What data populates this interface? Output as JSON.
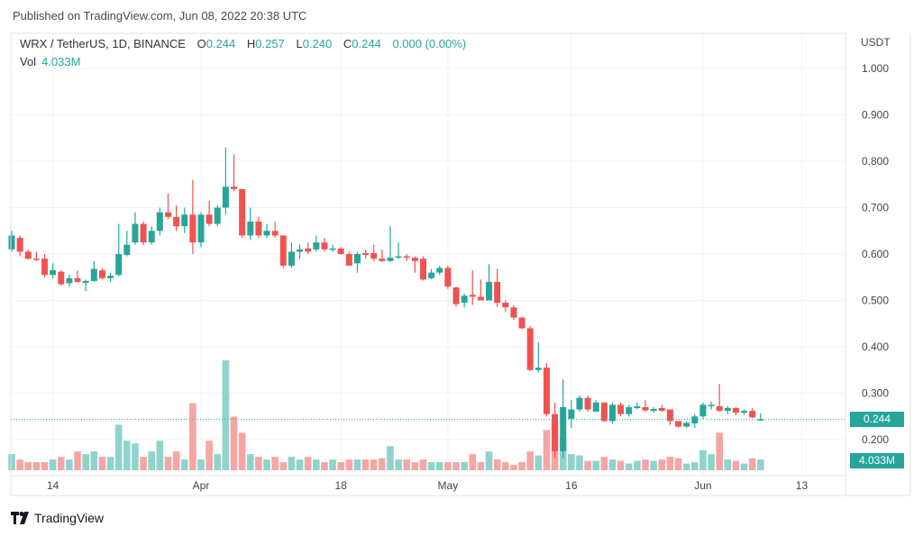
{
  "header": {
    "published": "Published on TradingView.com, Jun 08, 2022 20:38 UTC"
  },
  "legend": {
    "symbol": "WRX / TetherUS, 1D, BINANCE",
    "o_label": "O",
    "o": "0.244",
    "h_label": "H",
    "h": "0.257",
    "l_label": "L",
    "l": "0.240",
    "c_label": "C",
    "c": "0.244",
    "change": "0.000 (0.00%)",
    "vol_label": "Vol",
    "vol": "4.033M"
  },
  "price_axis": {
    "unit": "USDT",
    "ticks": [
      "1.000",
      "0.900",
      "0.800",
      "0.700",
      "0.600",
      "0.500",
      "0.400",
      "0.300",
      "0.200"
    ]
  },
  "badges": {
    "last_price": "0.244",
    "last_volume": "4.033M"
  },
  "footer": {
    "logo_text": "TradingView"
  },
  "colors": {
    "up": "#26a69a",
    "down": "#ef5350",
    "up_volume": "#8fd3cc",
    "down_volume": "#f5a6a4",
    "grid": "#f0f3fa"
  },
  "chart_data": {
    "type": "candlestick",
    "symbol": "WRX / TetherUS",
    "interval": "1D",
    "first_date": "2022-03-09",
    "ylim": [
      0.2,
      1.0
    ],
    "y_ticks": [
      0.2,
      0.3,
      0.4,
      0.5,
      0.6,
      0.7,
      0.8,
      0.9,
      1.0
    ],
    "grid": true,
    "last_price": 0.244,
    "x_ticks": [
      {
        "date": "2022-03-14",
        "label": "14"
      },
      {
        "date": "2022-04-01",
        "label": "Apr"
      },
      {
        "date": "2022-04-18",
        "label": "18"
      },
      {
        "date": "2022-05-01",
        "label": "May"
      },
      {
        "date": "2022-05-16",
        "label": "16"
      },
      {
        "date": "2022-06-01",
        "label": "Jun"
      },
      {
        "date": "2022-06-13",
        "label": "13"
      }
    ],
    "ohlcv_fields": [
      "open",
      "high",
      "low",
      "close",
      "volume_millions"
    ],
    "ohlcv": [
      [
        0.61,
        0.65,
        0.605,
        0.64,
        6
      ],
      [
        0.635,
        0.64,
        0.595,
        0.605,
        4
      ],
      [
        0.605,
        0.61,
        0.588,
        0.59,
        3
      ],
      [
        0.59,
        0.605,
        0.585,
        0.588,
        3
      ],
      [
        0.59,
        0.6,
        0.55,
        0.555,
        3
      ],
      [
        0.555,
        0.58,
        0.548,
        0.565,
        4
      ],
      [
        0.562,
        0.565,
        0.532,
        0.535,
        5
      ],
      [
        0.537,
        0.555,
        0.53,
        0.548,
        4
      ],
      [
        0.548,
        0.565,
        0.538,
        0.54,
        7
      ],
      [
        0.538,
        0.545,
        0.52,
        0.542,
        6
      ],
      [
        0.542,
        0.585,
        0.54,
        0.568,
        7
      ],
      [
        0.565,
        0.57,
        0.545,
        0.548,
        5
      ],
      [
        0.548,
        0.56,
        0.54,
        0.553,
        5
      ],
      [
        0.555,
        0.665,
        0.552,
        0.6,
        17
      ],
      [
        0.598,
        0.65,
        0.595,
        0.62,
        11
      ],
      [
        0.625,
        0.69,
        0.62,
        0.665,
        10
      ],
      [
        0.665,
        0.67,
        0.62,
        0.625,
        5
      ],
      [
        0.625,
        0.66,
        0.62,
        0.65,
        7
      ],
      [
        0.65,
        0.7,
        0.64,
        0.69,
        11
      ],
      [
        0.69,
        0.73,
        0.675,
        0.68,
        5
      ],
      [
        0.68,
        0.705,
        0.65,
        0.66,
        7
      ],
      [
        0.66,
        0.7,
        0.645,
        0.685,
        4
      ],
      [
        0.685,
        0.76,
        0.6,
        0.625,
        25
      ],
      [
        0.625,
        0.69,
        0.615,
        0.685,
        4
      ],
      [
        0.685,
        0.715,
        0.66,
        0.665,
        11
      ],
      [
        0.665,
        0.705,
        0.66,
        0.7,
        6
      ],
      [
        0.7,
        0.83,
        0.685,
        0.745,
        41
      ],
      [
        0.745,
        0.815,
        0.735,
        0.74,
        20
      ],
      [
        0.74,
        0.74,
        0.635,
        0.64,
        14
      ],
      [
        0.64,
        0.7,
        0.63,
        0.67,
        6
      ],
      [
        0.67,
        0.68,
        0.635,
        0.64,
        5
      ],
      [
        0.64,
        0.665,
        0.635,
        0.65,
        4
      ],
      [
        0.65,
        0.67,
        0.635,
        0.64,
        5
      ],
      [
        0.64,
        0.64,
        0.57,
        0.575,
        3
      ],
      [
        0.575,
        0.625,
        0.57,
        0.605,
        5
      ],
      [
        0.605,
        0.62,
        0.59,
        0.61,
        4
      ],
      [
        0.612,
        0.625,
        0.6,
        0.605,
        5
      ],
      [
        0.61,
        0.64,
        0.605,
        0.625,
        4
      ],
      [
        0.625,
        0.635,
        0.605,
        0.61,
        3
      ],
      [
        0.61,
        0.62,
        0.605,
        0.612,
        4
      ],
      [
        0.612,
        0.615,
        0.598,
        0.6,
        3
      ],
      [
        0.6,
        0.605,
        0.575,
        0.575,
        4
      ],
      [
        0.58,
        0.605,
        0.56,
        0.6,
        4
      ],
      [
        0.602,
        0.61,
        0.59,
        0.598,
        4
      ],
      [
        0.602,
        0.62,
        0.585,
        0.59,
        4
      ],
      [
        0.59,
        0.61,
        0.583,
        0.585,
        4.5
      ],
      [
        0.585,
        0.66,
        0.583,
        0.592,
        9
      ],
      [
        0.593,
        0.625,
        0.59,
        0.595,
        4
      ],
      [
        0.595,
        0.6,
        0.585,
        0.592,
        4
      ],
      [
        0.592,
        0.595,
        0.56,
        0.585,
        3
      ],
      [
        0.59,
        0.595,
        0.543,
        0.545,
        4
      ],
      [
        0.548,
        0.568,
        0.546,
        0.56,
        3
      ],
      [
        0.56,
        0.575,
        0.555,
        0.57,
        3
      ],
      [
        0.57,
        0.575,
        0.525,
        0.53,
        3
      ],
      [
        0.528,
        0.53,
        0.486,
        0.492,
        3
      ],
      [
        0.495,
        0.515,
        0.485,
        0.51,
        3
      ],
      [
        0.512,
        0.565,
        0.49,
        0.508,
        6
      ],
      [
        0.508,
        0.545,
        0.5,
        0.5,
        3
      ],
      [
        0.5,
        0.578,
        0.5,
        0.54,
        7
      ],
      [
        0.54,
        0.568,
        0.486,
        0.495,
        4
      ],
      [
        0.495,
        0.5,
        0.475,
        0.485,
        3
      ],
      [
        0.485,
        0.49,
        0.458,
        0.463,
        2
      ],
      [
        0.463,
        0.465,
        0.438,
        0.44,
        3
      ],
      [
        0.44,
        0.445,
        0.348,
        0.35,
        7
      ],
      [
        0.35,
        0.41,
        0.345,
        0.355,
        5.5
      ],
      [
        0.355,
        0.365,
        0.25,
        0.255,
        15
      ],
      [
        0.255,
        0.28,
        0.16,
        0.175,
        18
      ],
      [
        0.175,
        0.33,
        0.16,
        0.27,
        12
      ],
      [
        0.245,
        0.285,
        0.225,
        0.265,
        6
      ],
      [
        0.265,
        0.295,
        0.26,
        0.29,
        5.5
      ],
      [
        0.29,
        0.295,
        0.26,
        0.265,
        3.5
      ],
      [
        0.26,
        0.285,
        0.26,
        0.28,
        3.5
      ],
      [
        0.28,
        0.28,
        0.238,
        0.24,
        5
      ],
      [
        0.24,
        0.28,
        0.235,
        0.275,
        4
      ],
      [
        0.275,
        0.28,
        0.25,
        0.255,
        3.5
      ],
      [
        0.255,
        0.275,
        0.25,
        0.27,
        2.5
      ],
      [
        0.268,
        0.28,
        0.265,
        0.272,
        3.5
      ],
      [
        0.27,
        0.285,
        0.26,
        0.263,
        4
      ],
      [
        0.262,
        0.27,
        0.258,
        0.266,
        3.5
      ],
      [
        0.268,
        0.275,
        0.26,
        0.262,
        4
      ],
      [
        0.265,
        0.265,
        0.232,
        0.24,
        5
      ],
      [
        0.24,
        0.24,
        0.226,
        0.228,
        4.5
      ],
      [
        0.228,
        0.24,
        0.226,
        0.236,
        2.5
      ],
      [
        0.235,
        0.255,
        0.225,
        0.25,
        3
      ],
      [
        0.25,
        0.28,
        0.245,
        0.275,
        7.5
      ],
      [
        0.272,
        0.282,
        0.265,
        0.275,
        6
      ],
      [
        0.272,
        0.32,
        0.26,
        0.262,
        14
      ],
      [
        0.262,
        0.272,
        0.255,
        0.268,
        4
      ],
      [
        0.268,
        0.27,
        0.252,
        0.258,
        3.5
      ],
      [
        0.258,
        0.265,
        0.253,
        0.262,
        2.5
      ],
      [
        0.262,
        0.268,
        0.246,
        0.248,
        4.5
      ],
      [
        0.244,
        0.257,
        0.24,
        0.244,
        4.033
      ]
    ]
  }
}
